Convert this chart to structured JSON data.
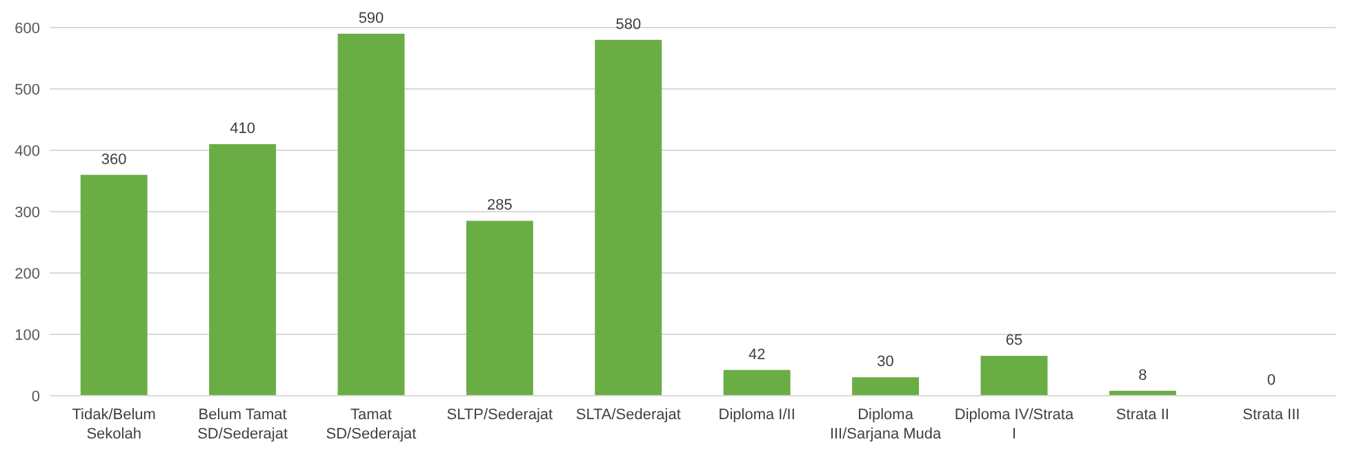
{
  "chart_data": {
    "type": "bar",
    "categories": [
      "Tidak/Belum Sekolah",
      "Belum Tamat SD/Sederajat",
      "Tamat SD/Sederajat",
      "SLTP/Sederajat",
      "SLTA/Sederajat",
      "Diploma I/II",
      "Diploma III/Sarjana Muda",
      "Diploma IV/Strata I",
      "Strata II",
      "Strata III"
    ],
    "values": [
      360,
      410,
      590,
      285,
      580,
      42,
      30,
      65,
      8,
      0
    ],
    "color": "#6aad45",
    "ylim": [
      0,
      600
    ],
    "yticks": [
      0,
      100,
      200,
      300,
      400,
      500,
      600
    ],
    "grid": true,
    "data_labels": true
  }
}
